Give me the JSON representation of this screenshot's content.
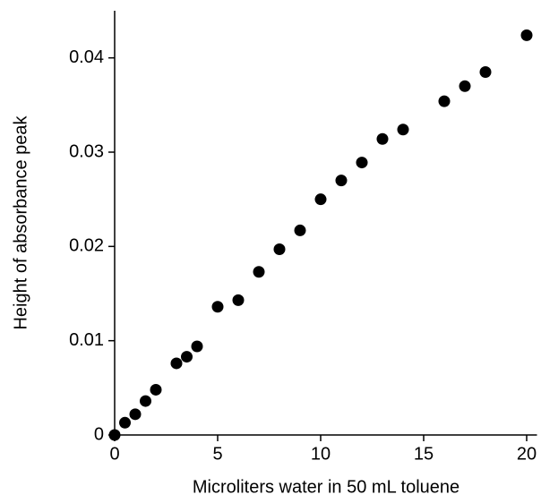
{
  "chart_data": {
    "type": "scatter",
    "x_label": "Microliters water in 50 mL toluene",
    "y_label": "Height of absorbance peak",
    "x": [
      0,
      0.5,
      1,
      1.5,
      2,
      3,
      3.5,
      4,
      5,
      6,
      7,
      8,
      9,
      10,
      11,
      12,
      13,
      14,
      16,
      17,
      18,
      20
    ],
    "values": [
      0,
      0.0013,
      0.0022,
      0.0036,
      0.0048,
      0.0076,
      0.0083,
      0.0094,
      0.0136,
      0.0143,
      0.0173,
      0.0197,
      0.0217,
      0.025,
      0.027,
      0.0289,
      0.0314,
      0.0324,
      0.0354,
      0.037,
      0.0385,
      0.0424
    ],
    "color": "#000000",
    "xlim": [
      0,
      20.5
    ],
    "xticks": [
      0,
      5,
      10,
      15,
      20
    ],
    "ylim": [
      0,
      0.045
    ],
    "yticks": [
      0,
      0.01,
      0.02,
      0.03,
      0.04
    ],
    "grid": false
  }
}
